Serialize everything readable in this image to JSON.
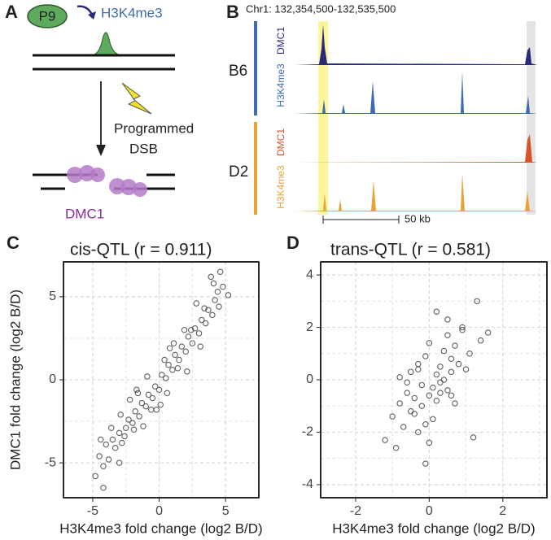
{
  "panel_a": {
    "label": "A",
    "factor": "P9",
    "mark": "H3K4me3",
    "event_line1": "Programmed",
    "event_line2": "DSB",
    "protein": "DMC1"
  },
  "panel_b": {
    "label": "B",
    "region": "Chr1: 132,354,500-132,535,500",
    "strain1": "B6",
    "strain2": "D2",
    "tracks": [
      "DMC1",
      "H3K4me3",
      "DMC1",
      "H3K4me3"
    ],
    "scale": "50 kb"
  },
  "chart_data": [
    {
      "type": "scatter",
      "panel_label": "C",
      "title": "cis-QTL (r = 0.911)",
      "xlabel": "H3K4me3 fold change (log2 B/D)",
      "ylabel": "DMC1 fold change (log2 B/D)",
      "xlim": [
        -7.2,
        7.5
      ],
      "ylim": [
        -7.1,
        7.1
      ],
      "xticks": [
        -5,
        0,
        5
      ],
      "yticks": [
        -5,
        0,
        5
      ],
      "grid": true,
      "color": "#444444",
      "x": [
        -4.8,
        -4.5,
        -4.2,
        -4.0,
        -3.8,
        -3.5,
        -3.3,
        -3.0,
        -2.8,
        -2.5,
        -2.3,
        -2.0,
        -1.8,
        -1.5,
        -1.3,
        -1.0,
        -0.8,
        -0.5,
        -0.3,
        0,
        0.2,
        0.5,
        0.7,
        1.0,
        1.2,
        1.5,
        1.7,
        2.0,
        2.2,
        2.5,
        2.7,
        3.0,
        3.2,
        3.5,
        3.7,
        4.0,
        4.2,
        4.5,
        4.8,
        5.2,
        -3.6,
        -2.6,
        -1.6,
        -0.6,
        0.4,
        1.4,
        2.4,
        3.4,
        4.4,
        -4.2,
        -2.9,
        -1.9,
        -0.9,
        0.1,
        1.1,
        2.1,
        3.1,
        4.1,
        -1.2,
        0.8,
        -2.2,
        2.8,
        -3.0,
        1.9,
        -0.2,
        3.9,
        -4.4,
        0.6,
        -1.7,
        4.6
      ],
      "values": [
        -5.8,
        -4.6,
        -5.2,
        -3.9,
        -4.8,
        -3.6,
        -4.1,
        -3.2,
        -3.8,
        -2.9,
        -2.4,
        -2.6,
        -1.9,
        -2.2,
        -1.4,
        -1.6,
        -0.9,
        -1.1,
        -0.4,
        -0.6,
        0.3,
        0.1,
        0.9,
        0.6,
        1.5,
        1.2,
        2.0,
        1.7,
        2.6,
        2.2,
        3.1,
        2.8,
        3.6,
        3.4,
        4.2,
        3.9,
        4.8,
        4.4,
        5.6,
        5.1,
        -2.9,
        -3.4,
        -0.8,
        -1.8,
        1.2,
        0.7,
        3.0,
        4.3,
        5.3,
        -6.5,
        -2.1,
        -3.0,
        0.2,
        -1.5,
        2.2,
        0.5,
        2.0,
        5.8,
        -2.8,
        1.9,
        -1.2,
        4.6,
        -5.0,
        3.0,
        -1.8,
        6.2,
        -3.6,
        -0.8,
        -0.6,
        6.5
      ]
    },
    {
      "type": "scatter",
      "panel_label": "D",
      "title": "trans-QTL (r = 0.581)",
      "xlabel": "H3K4me3 fold change (log2 B/D)",
      "xlim": [
        -2.95,
        3.2
      ],
      "ylim": [
        -4.5,
        4.5
      ],
      "xticks": [
        -2,
        0,
        2
      ],
      "yticks": [
        -4,
        -2,
        0,
        2,
        4
      ],
      "grid": true,
      "color": "#444444",
      "x": [
        -1.2,
        -1.0,
        -0.9,
        -0.8,
        -0.7,
        -0.6,
        -0.5,
        -0.5,
        -0.4,
        -0.3,
        -0.3,
        -0.2,
        -0.2,
        -0.1,
        -0.1,
        0,
        0,
        0.1,
        0.1,
        0.2,
        0.2,
        0.3,
        0.3,
        0.4,
        0.4,
        0.5,
        0.5,
        0.6,
        0.6,
        0.7,
        0.7,
        0.8,
        0.9,
        1.0,
        1.1,
        1.2,
        1.4,
        1.6,
        -0.1,
        0.2,
        -0.6,
        0.5,
        -0.3,
        0.9,
        0.0,
        0.3,
        -0.8,
        1.3,
        0.6,
        -0.4
      ],
      "values": [
        -2.3,
        -1.4,
        -2.6,
        -0.9,
        -1.8,
        -0.5,
        -1.2,
        0.3,
        -0.7,
        -2.0,
        0.6,
        -1.0,
        -0.2,
        -3.2,
        0.9,
        -0.6,
        1.4,
        -0.3,
        -1.5,
        0.2,
        -0.8,
        0.5,
        -0.1,
        1.1,
        0.0,
        -0.4,
        1.7,
        0.8,
        0.3,
        1.3,
        -0.9,
        0.6,
        1.9,
        0.4,
        1.0,
        -2.2,
        1.5,
        1.8,
        -1.7,
        2.6,
        -0.1,
        2.3,
        0.4,
        2.0,
        -2.4,
        -0.5,
        0.1,
        3.0,
        -0.6,
        -1.3
      ]
    }
  ]
}
